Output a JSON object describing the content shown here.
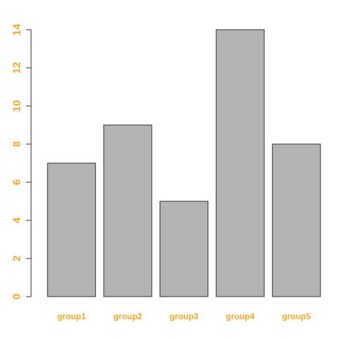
{
  "chart_data": {
    "type": "bar",
    "categories": [
      "group1",
      "group2",
      "group3",
      "group4",
      "group5"
    ],
    "values": [
      7,
      9,
      5,
      14,
      8
    ],
    "title": "",
    "xlabel": "",
    "ylabel": "",
    "ylim": [
      0,
      14
    ],
    "yticks": [
      0,
      2,
      4,
      6,
      8,
      10,
      12,
      14
    ],
    "grid": false,
    "legend": "none",
    "colors": {
      "bar_fill": "#b3b3b3",
      "bar_stroke": "#333333",
      "axis": "#333333",
      "tick_label": "#f5a623"
    }
  }
}
